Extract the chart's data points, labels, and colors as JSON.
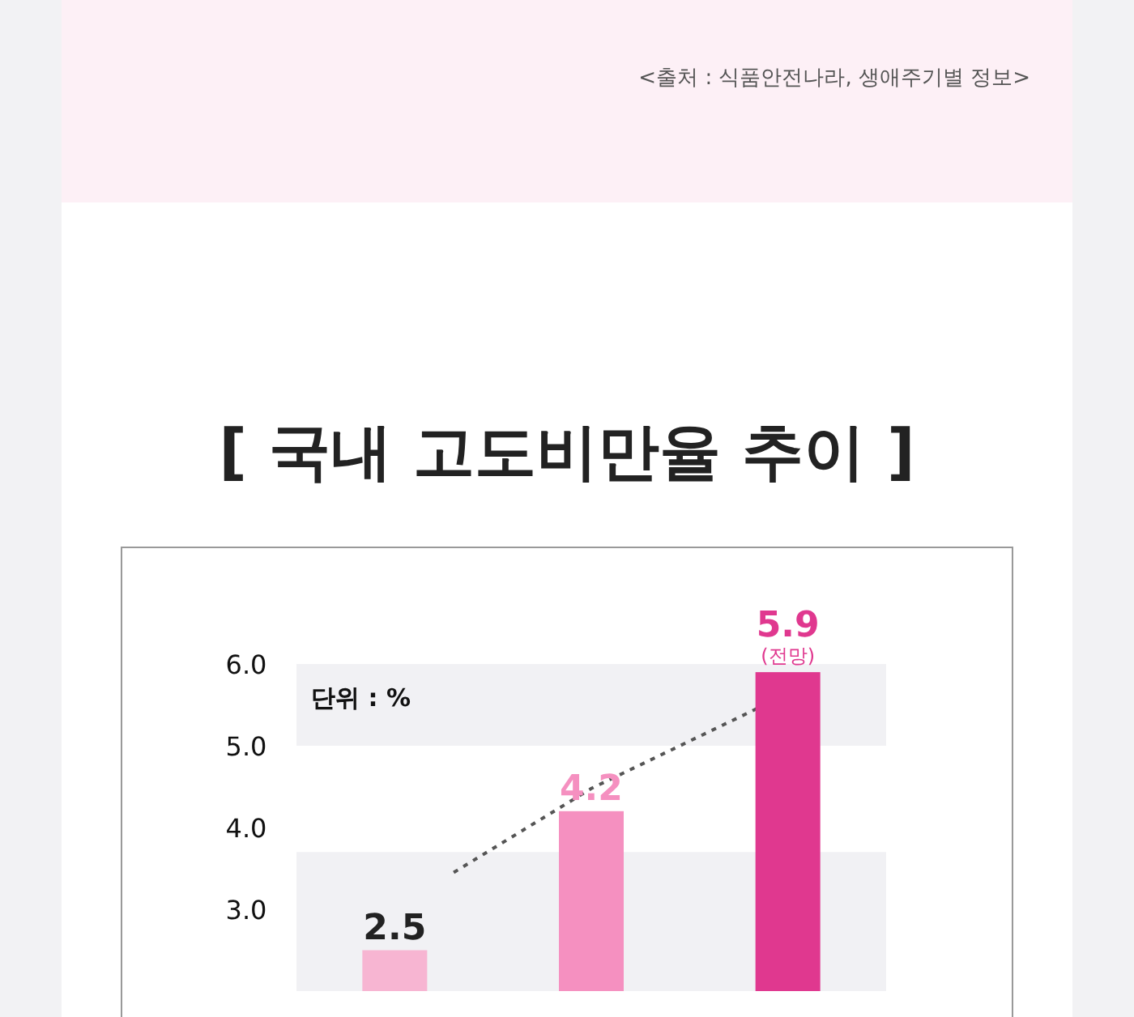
{
  "chart_data": {
    "type": "bar",
    "title": "[ 국내 고도비만율 추이 ]",
    "categories": [
      null,
      null,
      null
    ],
    "values": [
      2.5,
      4.2,
      5.9
    ],
    "colors": [
      "#f7b5d2",
      "#f590c0",
      "#e0388f"
    ],
    "data_labels": true,
    "ylim": [
      2.0,
      6.0
    ],
    "yticks": [
      {
        "value": 3,
        "label": "3.0"
      },
      {
        "value": 4,
        "label": "4.0"
      },
      {
        "value": 5,
        "label": "5.0"
      },
      {
        "value": 6,
        "label": "6.0"
      }
    ],
    "bands": [
      {
        "axis": "y",
        "from": 5.0,
        "to": 6.0,
        "color": "#f1f1f4"
      },
      {
        "axis": "y",
        "from": 2.0,
        "to": 3.7,
        "color": "#f1f1f4"
      }
    ],
    "annotations": [
      "<출처 : 식품안전나라, 생애주기별 정보>",
      "단위 : %",
      "(전망)"
    ]
  }
}
